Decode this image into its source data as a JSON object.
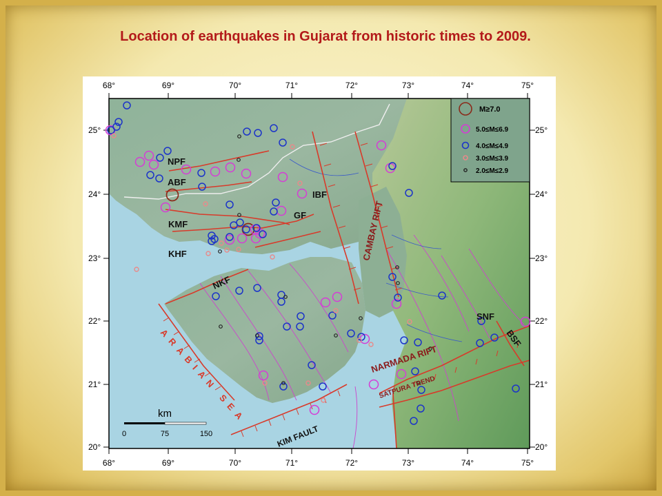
{
  "title": "Location of earthquakes in Gujarat from historic times to 2009.",
  "colors": {
    "title": "#b31a1a",
    "sea": "#a9d4e3",
    "fault": "#d83a2a",
    "rift_label": "#8b1a1a",
    "magnitude_ge7": "#8b2a1a",
    "magnitude_5": "#d63bd6",
    "magnitude_4": "#1b33c9",
    "magnitude_3": "#e88a8a",
    "magnitude_2": "#222222"
  },
  "map": {
    "lon_ticks": [
      "68°",
      "69°",
      "70°",
      "71°",
      "72°",
      "73°",
      "74°",
      "75°"
    ],
    "lat_ticks": [
      "25°",
      "24°",
      "23°",
      "22°",
      "21°",
      "20°"
    ],
    "sea_label": "ARABIAN SEA",
    "rift_labels": {
      "cambay": "CAMBAY RIFT",
      "narmada": "NARMADA RIFT",
      "satpura": "SATPURA TREND"
    },
    "fault_labels": {
      "npf": "NPF",
      "abf": "ABF",
      "kmf": "KMF",
      "khf": "KHF",
      "ibf": "IBF",
      "gf": "GF",
      "nkf": "NKF",
      "snf": "SNF",
      "bsf": "BSF",
      "kim": "KIM FAULT"
    },
    "scale": {
      "unit": "km",
      "ticks": [
        "0",
        "75",
        "150"
      ]
    },
    "legend": [
      {
        "label": "M≥7.0",
        "icon": "circle-ge7-icon"
      },
      {
        "label": "5.0≤M≤6.9",
        "icon": "circle-m5-icon"
      },
      {
        "label": "4.0≤M≤4.9",
        "icon": "circle-m4-icon"
      },
      {
        "label": "3.0≤M≤3.9",
        "icon": "circle-m3-icon"
      },
      {
        "label": "2.0≤M≤2.9",
        "icon": "circle-m2-icon"
      }
    ]
  }
}
